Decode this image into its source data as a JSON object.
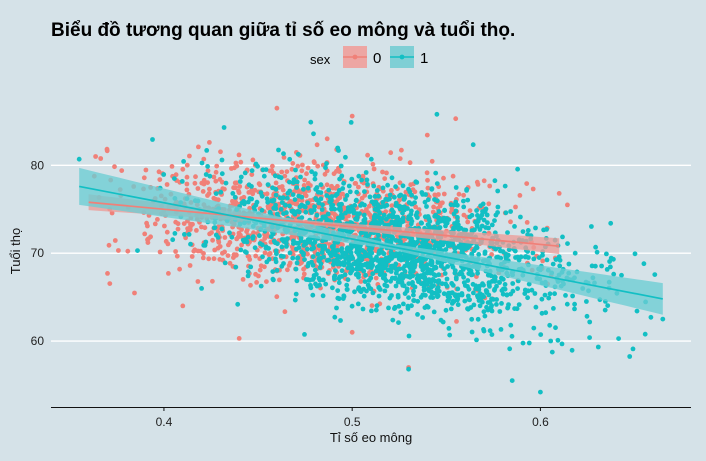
{
  "chart_data": {
    "type": "scatter",
    "title": "Biểu đồ tương quan giữa tỉ số eo mông và tuổi thọ.",
    "xlabel": "Tỉ số eo mông",
    "ylabel": "Tuổi thọ",
    "xlim": [
      0.34,
      0.68
    ],
    "ylim": [
      52.5,
      88
    ],
    "x_ticks": [
      0.4,
      0.5,
      0.6
    ],
    "x_tick_labels": [
      "0.4",
      "0.5",
      "0.6"
    ],
    "y_ticks": [
      60,
      70,
      80
    ],
    "y_tick_labels": [
      "60",
      "70",
      "80"
    ],
    "grid": "horizontal-major",
    "legend": {
      "title": "sex",
      "position": "top",
      "entries": [
        {
          "label": "0",
          "color": "#f08078"
        },
        {
          "label": "1",
          "color": "#12bfc4"
        }
      ]
    },
    "series": [
      {
        "name": "0",
        "color": "#f08078",
        "band_color": "#ec9c99",
        "n_points": 1300,
        "x_range": [
          0.36,
          0.615
        ],
        "x_center": 0.48,
        "x_spread": 0.045,
        "trend": {
          "x": [
            0.36,
            0.61
          ],
          "y": [
            75.8,
            70.8
          ]
        },
        "band_halfwidth": {
          "x": [
            0.36,
            0.48,
            0.61
          ],
          "y": [
            0.9,
            0.25,
            0.9
          ]
        },
        "residual_sd": 3.3,
        "points_sample": [
          {
            "x": 0.46,
            "y": 86.5
          },
          {
            "x": 0.5,
            "y": 85.6
          },
          {
            "x": 0.555,
            "y": 85.3
          },
          {
            "x": 0.37,
            "y": 67.7
          },
          {
            "x": 0.41,
            "y": 64.0
          },
          {
            "x": 0.44,
            "y": 60.3
          },
          {
            "x": 0.5,
            "y": 61.0
          },
          {
            "x": 0.61,
            "y": 76.8
          },
          {
            "x": 0.53,
            "y": 57.0
          }
        ]
      },
      {
        "name": "1",
        "color": "#12bfc4",
        "band_color": "#6ccdd4",
        "n_points": 1800,
        "x_range": [
          0.355,
          0.665
        ],
        "x_center": 0.525,
        "x_spread": 0.045,
        "trend": {
          "x": [
            0.355,
            0.665
          ],
          "y": [
            77.6,
            64.8
          ]
        },
        "band_halfwidth": {
          "x": [
            0.355,
            0.52,
            0.665
          ],
          "y": [
            2.1,
            0.3,
            1.8
          ]
        },
        "residual_sd": 3.5,
        "points_sample": [
          {
            "x": 0.355,
            "y": 80.7
          },
          {
            "x": 0.545,
            "y": 85.8
          },
          {
            "x": 0.478,
            "y": 84.9
          },
          {
            "x": 0.665,
            "y": 62.5
          },
          {
            "x": 0.6,
            "y": 54.2
          },
          {
            "x": 0.585,
            "y": 55.5
          },
          {
            "x": 0.53,
            "y": 56.8
          },
          {
            "x": 0.655,
            "y": 68.8
          },
          {
            "x": 0.42,
            "y": 66.0
          }
        ]
      }
    ]
  }
}
